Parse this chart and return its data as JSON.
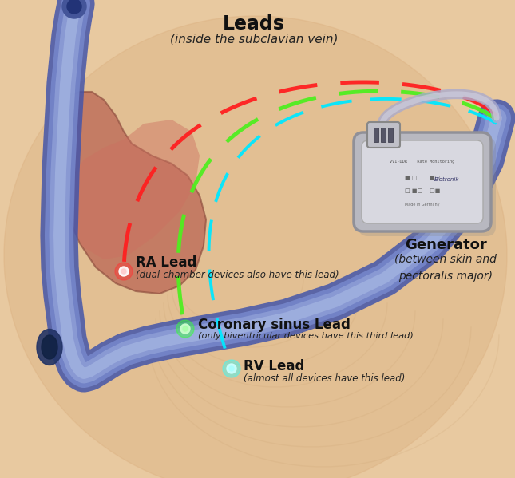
{
  "bg_color": "#e8c9a0",
  "title": "Leads",
  "title_sub": "(inside the subclavian vein)",
  "generator_title": "Generator",
  "generator_sub": "(between skin and\npectoralis major)",
  "ra_label": "RA Lead",
  "ra_sub": "(dual-chamber devices also have this lead)",
  "cs_label": "Coronary sinus Lead",
  "cs_sub": "(only biventricular devices have this third lead)",
  "rv_label": "RV Lead",
  "rv_sub": "(almost all devices have this lead)",
  "lead_color_red": "#ff2020",
  "lead_color_green": "#50ee20",
  "lead_color_cyan": "#00e8ff",
  "vessel_color": "#8899cc",
  "figsize": [
    6.45,
    5.99
  ],
  "dpi": 100
}
